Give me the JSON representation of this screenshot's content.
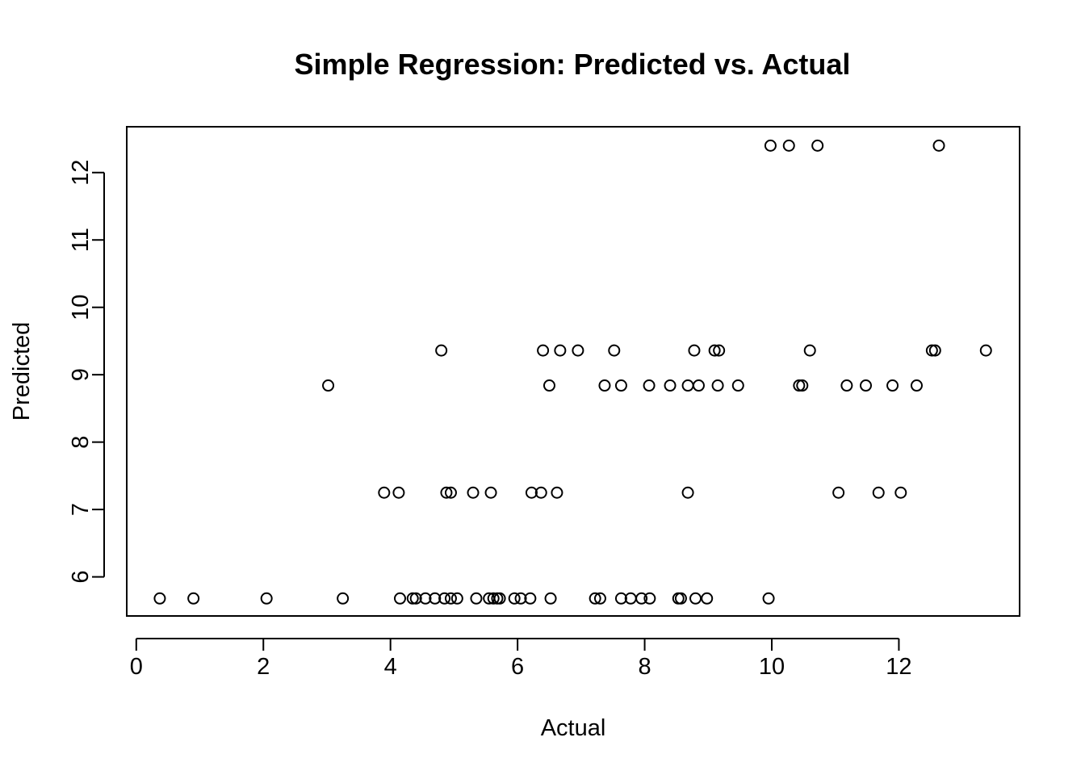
{
  "chart_data": {
    "type": "scatter",
    "title": "Simple Regression: Predicted vs. Actual",
    "xlabel": "Actual",
    "ylabel": "Predicted",
    "xlim": [
      -0.15,
      13.9
    ],
    "ylim": [
      5.42,
      12.68
    ],
    "xticks": [
      "0",
      "2",
      "4",
      "6",
      "8",
      "10",
      "12"
    ],
    "yticks": [
      "6",
      "7",
      "8",
      "9",
      "10",
      "11",
      "12"
    ],
    "grid": false,
    "marker": "open-circle",
    "points": [
      {
        "x": 0.37,
        "y": 5.68
      },
      {
        "x": 0.9,
        "y": 5.68
      },
      {
        "x": 2.05,
        "y": 5.68
      },
      {
        "x": 3.25,
        "y": 5.68
      },
      {
        "x": 4.15,
        "y": 5.68
      },
      {
        "x": 4.35,
        "y": 5.68
      },
      {
        "x": 4.4,
        "y": 5.68
      },
      {
        "x": 4.55,
        "y": 5.68
      },
      {
        "x": 4.7,
        "y": 5.68
      },
      {
        "x": 4.85,
        "y": 5.68
      },
      {
        "x": 4.95,
        "y": 5.68
      },
      {
        "x": 5.05,
        "y": 5.68
      },
      {
        "x": 5.35,
        "y": 5.68
      },
      {
        "x": 5.55,
        "y": 5.68
      },
      {
        "x": 5.62,
        "y": 5.68
      },
      {
        "x": 5.68,
        "y": 5.68
      },
      {
        "x": 5.72,
        "y": 5.68
      },
      {
        "x": 5.95,
        "y": 5.68
      },
      {
        "x": 6.05,
        "y": 5.68
      },
      {
        "x": 6.2,
        "y": 5.68
      },
      {
        "x": 6.52,
        "y": 5.68
      },
      {
        "x": 7.22,
        "y": 5.68
      },
      {
        "x": 7.3,
        "y": 5.68
      },
      {
        "x": 7.63,
        "y": 5.68
      },
      {
        "x": 7.78,
        "y": 5.68
      },
      {
        "x": 7.95,
        "y": 5.68
      },
      {
        "x": 8.08,
        "y": 5.68
      },
      {
        "x": 8.53,
        "y": 5.68
      },
      {
        "x": 8.57,
        "y": 5.68
      },
      {
        "x": 8.8,
        "y": 5.68
      },
      {
        "x": 8.98,
        "y": 5.68
      },
      {
        "x": 9.95,
        "y": 5.68
      },
      {
        "x": 3.9,
        "y": 7.25
      },
      {
        "x": 4.13,
        "y": 7.25
      },
      {
        "x": 4.88,
        "y": 7.25
      },
      {
        "x": 4.95,
        "y": 7.25
      },
      {
        "x": 5.3,
        "y": 7.25
      },
      {
        "x": 5.58,
        "y": 7.25
      },
      {
        "x": 6.22,
        "y": 7.25
      },
      {
        "x": 6.37,
        "y": 7.25
      },
      {
        "x": 6.62,
        "y": 7.25
      },
      {
        "x": 8.68,
        "y": 7.25
      },
      {
        "x": 11.05,
        "y": 7.25
      },
      {
        "x": 11.68,
        "y": 7.25
      },
      {
        "x": 12.03,
        "y": 7.25
      },
      {
        "x": 3.02,
        "y": 8.84
      },
      {
        "x": 6.5,
        "y": 8.84
      },
      {
        "x": 7.37,
        "y": 8.84
      },
      {
        "x": 7.63,
        "y": 8.84
      },
      {
        "x": 8.07,
        "y": 8.84
      },
      {
        "x": 8.4,
        "y": 8.84
      },
      {
        "x": 8.68,
        "y": 8.84
      },
      {
        "x": 8.85,
        "y": 8.84
      },
      {
        "x": 9.15,
        "y": 8.84
      },
      {
        "x": 9.47,
        "y": 8.84
      },
      {
        "x": 10.43,
        "y": 8.84
      },
      {
        "x": 10.48,
        "y": 8.84
      },
      {
        "x": 11.18,
        "y": 8.84
      },
      {
        "x": 11.48,
        "y": 8.84
      },
      {
        "x": 11.9,
        "y": 8.84
      },
      {
        "x": 12.28,
        "y": 8.84
      },
      {
        "x": 4.8,
        "y": 9.36
      },
      {
        "x": 6.4,
        "y": 9.36
      },
      {
        "x": 6.67,
        "y": 9.36
      },
      {
        "x": 6.95,
        "y": 9.36
      },
      {
        "x": 7.52,
        "y": 9.36
      },
      {
        "x": 8.78,
        "y": 9.36
      },
      {
        "x": 9.1,
        "y": 9.36
      },
      {
        "x": 9.17,
        "y": 9.36
      },
      {
        "x": 10.6,
        "y": 9.36
      },
      {
        "x": 12.52,
        "y": 9.36
      },
      {
        "x": 12.57,
        "y": 9.36
      },
      {
        "x": 13.37,
        "y": 9.36
      },
      {
        "x": 9.98,
        "y": 12.4
      },
      {
        "x": 10.27,
        "y": 12.4
      },
      {
        "x": 10.72,
        "y": 12.4
      },
      {
        "x": 12.63,
        "y": 12.4
      }
    ]
  }
}
